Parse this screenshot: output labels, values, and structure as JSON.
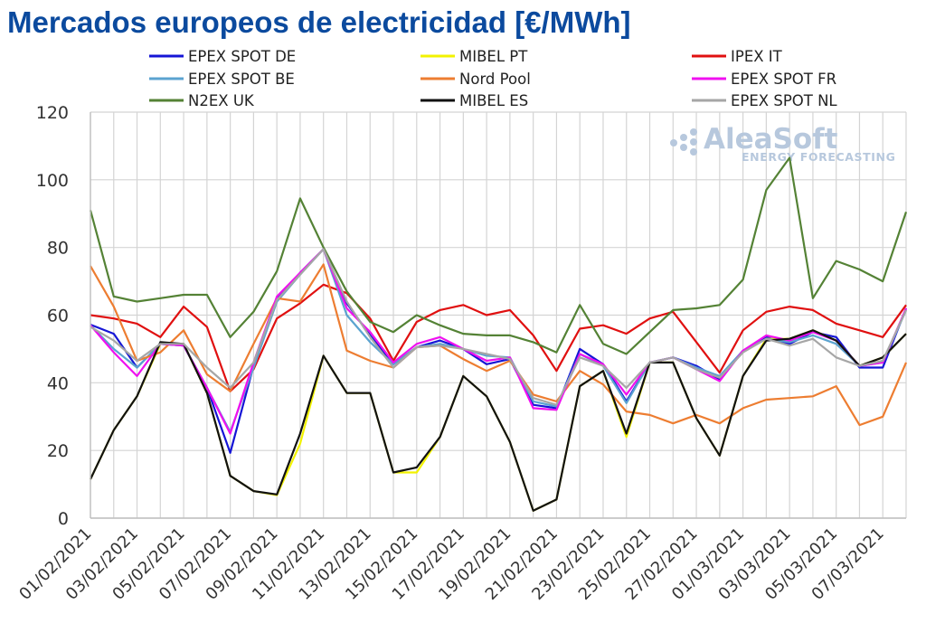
{
  "title": "Mercados europeos de electricidad [€/MWh]",
  "watermark": {
    "brand": "AleaSoft",
    "tagline": "ENERGY FORECASTING"
  },
  "chart_data": {
    "type": "line",
    "title": "Mercados europeos de electricidad [€/MWh]",
    "xlabel": "",
    "ylabel": "",
    "ylim": [
      0,
      120
    ],
    "yticks": [
      0,
      20,
      40,
      60,
      80,
      100,
      120
    ],
    "grid": true,
    "legend_position": "top",
    "x": [
      "01/02/2021",
      "02/02/2021",
      "03/02/2021",
      "04/02/2021",
      "05/02/2021",
      "06/02/2021",
      "07/02/2021",
      "08/02/2021",
      "09/02/2021",
      "10/02/2021",
      "11/02/2021",
      "12/02/2021",
      "13/02/2021",
      "14/02/2021",
      "15/02/2021",
      "16/02/2021",
      "17/02/2021",
      "18/02/2021",
      "19/02/2021",
      "20/02/2021",
      "21/02/2021",
      "22/02/2021",
      "23/02/2021",
      "24/02/2021",
      "25/02/2021",
      "26/02/2021",
      "27/02/2021",
      "28/02/2021",
      "01/03/2021",
      "02/03/2021",
      "03/03/2021",
      "04/03/2021",
      "05/03/2021",
      "06/03/2021",
      "07/03/2021",
      "08/03/2021"
    ],
    "xtick_labels": [
      "01/02/2021",
      "03/02/2021",
      "05/02/2021",
      "07/02/2021",
      "09/02/2021",
      "11/02/2021",
      "13/02/2021",
      "15/02/2021",
      "17/02/2021",
      "19/02/2021",
      "21/02/2021",
      "23/02/2021",
      "25/02/2021",
      "27/02/2021",
      "01/03/2021",
      "03/03/2021",
      "05/03/2021",
      "07/03/2021"
    ],
    "series": [
      {
        "name": "EPEX SPOT DE",
        "color": "#1515d6",
        "values": [
          57.2,
          54.5,
          44.5,
          51.5,
          51.0,
          38.5,
          19.3,
          45.0,
          65.0,
          72.5,
          79.5,
          63.5,
          54.0,
          45.5,
          50.5,
          52.5,
          50.0,
          45.5,
          47.0,
          33.5,
          32.5,
          50.0,
          45.5,
          34.5,
          46.0,
          47.5,
          45.0,
          41.0,
          49.5,
          53.5,
          51.5,
          55.0,
          53.5,
          44.5,
          44.5,
          62.0
        ]
      },
      {
        "name": "MIBEL PT",
        "color": "#f2f200",
        "values": [
          11.5,
          26.0,
          36.0,
          51.5,
          51.5,
          37.0,
          12.5,
          8.0,
          6.8,
          22.0,
          48.0,
          37.0,
          37.0,
          13.5,
          13.5,
          24.0,
          42.0,
          36.0,
          22.5,
          2.2,
          5.5,
          39.0,
          43.5,
          24.0,
          46.0,
          46.0,
          29.5,
          18.5,
          42.0,
          53.0,
          53.0,
          55.5,
          52.5,
          45.0,
          47.5,
          54.5
        ]
      },
      {
        "name": "IPEX IT",
        "color": "#e01010",
        "values": [
          60.0,
          59.0,
          57.5,
          53.5,
          62.5,
          56.5,
          37.5,
          44.0,
          59.0,
          63.5,
          69.0,
          66.5,
          59.0,
          46.5,
          58.0,
          61.5,
          63.0,
          60.0,
          61.5,
          54.0,
          43.5,
          56.0,
          57.0,
          54.5,
          59.0,
          61.0,
          52.0,
          43.0,
          55.5,
          61.0,
          62.5,
          61.5,
          57.5,
          55.5,
          53.5,
          63.0
        ]
      },
      {
        "name": "EPEX SPOT BE",
        "color": "#5ba3d0",
        "values": [
          57.0,
          50.0,
          44.5,
          51.5,
          51.0,
          38.5,
          25.5,
          44.5,
          64.0,
          72.0,
          79.5,
          60.0,
          52.0,
          45.5,
          50.5,
          51.5,
          50.0,
          48.0,
          47.5,
          34.5,
          33.0,
          48.5,
          45.0,
          34.0,
          46.0,
          47.5,
          44.5,
          42.0,
          49.5,
          53.0,
          52.0,
          54.0,
          51.5,
          45.0,
          46.0,
          61.5
        ]
      },
      {
        "name": "Nord Pool",
        "color": "#ed7d31",
        "values": [
          74.5,
          62.5,
          46.5,
          49.0,
          55.5,
          42.5,
          37.5,
          51.5,
          65.0,
          64.0,
          75.0,
          49.5,
          46.5,
          44.5,
          50.5,
          51.0,
          47.0,
          43.5,
          46.5,
          36.5,
          34.5,
          43.5,
          39.5,
          31.5,
          30.5,
          28.0,
          30.5,
          28.0,
          32.5,
          35.0,
          35.5,
          36.0,
          39.0,
          27.5,
          30.0,
          46.0
        ]
      },
      {
        "name": "EPEX SPOT FR",
        "color": "#f010f0",
        "values": [
          57.0,
          49.0,
          42.0,
          51.5,
          51.0,
          38.5,
          25.0,
          46.0,
          65.5,
          72.5,
          79.5,
          62.0,
          55.0,
          46.0,
          51.5,
          53.5,
          50.0,
          46.5,
          47.5,
          32.5,
          32.0,
          48.5,
          45.5,
          36.5,
          46.0,
          47.5,
          44.0,
          40.5,
          49.5,
          54.0,
          52.5,
          55.0,
          52.5,
          45.0,
          46.0,
          62.0
        ]
      },
      {
        "name": "N2EX UK",
        "color": "#548235",
        "values": [
          91.0,
          65.5,
          64.0,
          65.0,
          66.0,
          66.0,
          53.5,
          61.0,
          73.0,
          94.5,
          80.0,
          67.0,
          58.0,
          55.0,
          60.0,
          57.0,
          54.5,
          54.0,
          54.0,
          52.0,
          49.0,
          63.0,
          51.5,
          48.5,
          55.0,
          61.5,
          62.0,
          63.0,
          70.5,
          97.0,
          106.5,
          65.0,
          76.0,
          73.5,
          70.0,
          90.5
        ]
      },
      {
        "name": "MIBEL ES",
        "color": "#111111",
        "values": [
          11.5,
          26.0,
          36.0,
          52.0,
          51.5,
          37.0,
          12.5,
          8.0,
          7.0,
          25.0,
          48.0,
          37.0,
          37.0,
          13.5,
          15.0,
          24.0,
          42.0,
          36.0,
          22.5,
          2.2,
          5.5,
          39.0,
          43.5,
          25.0,
          46.0,
          46.0,
          29.5,
          18.5,
          42.0,
          52.5,
          53.0,
          55.5,
          52.5,
          45.0,
          47.5,
          54.5
        ]
      },
      {
        "name": "EPEX SPOT NL",
        "color": "#a6a6a6",
        "values": [
          56.5,
          52.5,
          46.5,
          51.5,
          51.5,
          44.5,
          38.5,
          46.0,
          64.5,
          72.0,
          79.5,
          64.0,
          53.5,
          44.5,
          50.5,
          51.0,
          50.0,
          48.5,
          47.0,
          35.5,
          33.5,
          47.5,
          45.0,
          38.5,
          46.0,
          47.5,
          44.0,
          41.5,
          49.0,
          53.0,
          51.0,
          53.0,
          47.5,
          45.0,
          46.5,
          61.5
        ]
      }
    ]
  }
}
